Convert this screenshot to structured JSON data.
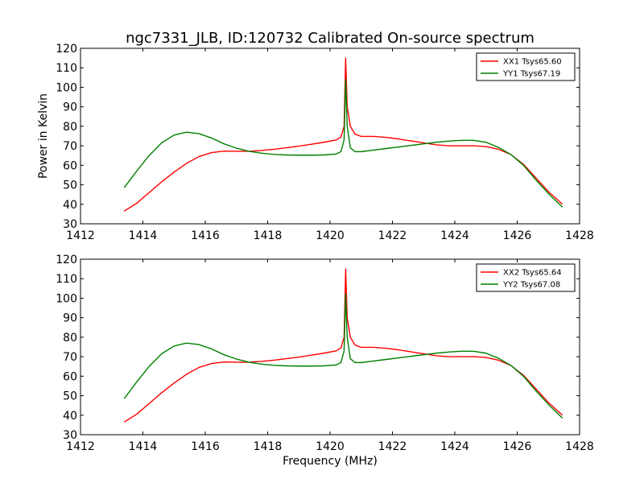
{
  "figure": {
    "title": "ngc7331_JLB, ID:120732 Calibrated On-source spectrum",
    "xlabel": "Frequency (MHz)"
  },
  "chart_data": [
    {
      "type": "line",
      "ylabel": "Power in Kelvin",
      "xlim": [
        1412,
        1428
      ],
      "ylim": [
        30,
        120
      ],
      "xticks": [
        1412,
        1414,
        1416,
        1418,
        1420,
        1422,
        1424,
        1426,
        1428
      ],
      "yticks": [
        30,
        40,
        50,
        60,
        70,
        80,
        90,
        100,
        110,
        120
      ],
      "grid": false,
      "legend": "top-right",
      "series": [
        {
          "name": "XX1 Tsys65.60",
          "color": "#ff0000",
          "x": [
            1413.4,
            1413.8,
            1414.2,
            1414.6,
            1415.0,
            1415.4,
            1415.8,
            1416.2,
            1416.6,
            1417.0,
            1417.4,
            1417.8,
            1418.2,
            1418.6,
            1419.0,
            1419.4,
            1419.8,
            1420.2,
            1420.35,
            1420.45,
            1420.5,
            1420.55,
            1420.65,
            1420.8,
            1421.0,
            1421.4,
            1421.8,
            1422.2,
            1422.6,
            1423.0,
            1423.4,
            1423.8,
            1424.2,
            1424.6,
            1425.0,
            1425.4,
            1425.8,
            1426.2,
            1426.6,
            1427.0,
            1427.45
          ],
          "y": [
            36.5,
            40.5,
            46,
            51.5,
            56.5,
            61,
            64.5,
            66.5,
            67.3,
            67.2,
            67.2,
            67.6,
            68.2,
            69,
            69.8,
            70.8,
            71.8,
            73,
            74.5,
            80,
            115,
            90,
            80,
            76,
            74.8,
            74.8,
            74.3,
            73.5,
            72.5,
            71.5,
            70.5,
            70,
            70,
            70,
            69.6,
            68.2,
            65.5,
            60.5,
            53.5,
            46.5,
            40
          ]
        },
        {
          "name": "YY1 Tsys67.19",
          "color": "#008000",
          "x": [
            1413.4,
            1413.8,
            1414.2,
            1414.6,
            1415.0,
            1415.4,
            1415.8,
            1416.2,
            1416.6,
            1417.0,
            1417.4,
            1417.8,
            1418.2,
            1418.6,
            1419.0,
            1419.4,
            1419.8,
            1420.2,
            1420.35,
            1420.45,
            1420.5,
            1420.55,
            1420.65,
            1420.8,
            1421.0,
            1421.4,
            1421.8,
            1422.2,
            1422.6,
            1423.0,
            1423.4,
            1423.8,
            1424.2,
            1424.6,
            1425.0,
            1425.4,
            1425.8,
            1426.2,
            1426.6,
            1427.0,
            1427.45
          ],
          "y": [
            48.5,
            57,
            65,
            71.5,
            75.5,
            77,
            76.2,
            74,
            71,
            68.8,
            67.2,
            66.2,
            65.6,
            65.3,
            65.2,
            65.2,
            65.3,
            65.8,
            67,
            73,
            104,
            80,
            69,
            67,
            67,
            67.8,
            68.6,
            69.4,
            70.2,
            71,
            71.8,
            72.4,
            72.8,
            72.8,
            71.8,
            69.2,
            65.5,
            60,
            52.5,
            45.5,
            38.5
          ]
        }
      ]
    },
    {
      "type": "line",
      "ylabel": "",
      "xlim": [
        1412,
        1428
      ],
      "ylim": [
        30,
        120
      ],
      "xticks": [
        1412,
        1414,
        1416,
        1418,
        1420,
        1422,
        1424,
        1426,
        1428
      ],
      "yticks": [
        30,
        40,
        50,
        60,
        70,
        80,
        90,
        100,
        110,
        120
      ],
      "grid": false,
      "legend": "top-right",
      "series": [
        {
          "name": "XX2 Tsys65.64",
          "color": "#ff0000",
          "x": [
            1413.4,
            1413.8,
            1414.2,
            1414.6,
            1415.0,
            1415.4,
            1415.8,
            1416.2,
            1416.6,
            1417.0,
            1417.4,
            1417.8,
            1418.2,
            1418.6,
            1419.0,
            1419.4,
            1419.8,
            1420.2,
            1420.35,
            1420.45,
            1420.5,
            1420.55,
            1420.65,
            1420.8,
            1421.0,
            1421.4,
            1421.8,
            1422.2,
            1422.6,
            1423.0,
            1423.4,
            1423.8,
            1424.2,
            1424.6,
            1425.0,
            1425.4,
            1425.8,
            1426.2,
            1426.6,
            1427.0,
            1427.45
          ],
          "y": [
            36.5,
            40.5,
            46,
            51.5,
            56.5,
            61,
            64.5,
            66.5,
            67.3,
            67.2,
            67.2,
            67.6,
            68.2,
            69,
            69.8,
            70.8,
            71.8,
            73,
            74.5,
            80,
            115,
            90,
            80,
            76,
            74.8,
            74.8,
            74.3,
            73.5,
            72.5,
            71.5,
            70.5,
            70,
            70,
            70,
            69.6,
            68.2,
            65.5,
            60.5,
            53.5,
            46.5,
            40
          ]
        },
        {
          "name": "YY2 Tsys67.08",
          "color": "#008000",
          "x": [
            1413.4,
            1413.8,
            1414.2,
            1414.6,
            1415.0,
            1415.4,
            1415.8,
            1416.2,
            1416.6,
            1417.0,
            1417.4,
            1417.8,
            1418.2,
            1418.6,
            1419.0,
            1419.4,
            1419.8,
            1420.2,
            1420.35,
            1420.45,
            1420.5,
            1420.55,
            1420.65,
            1420.8,
            1421.0,
            1421.4,
            1421.8,
            1422.2,
            1422.6,
            1423.0,
            1423.4,
            1423.8,
            1424.2,
            1424.6,
            1425.0,
            1425.4,
            1425.8,
            1426.2,
            1426.6,
            1427.0,
            1427.45
          ],
          "y": [
            48.5,
            57,
            65,
            71.5,
            75.5,
            77,
            76.2,
            74,
            71,
            68.8,
            67.2,
            66.2,
            65.6,
            65.3,
            65.2,
            65.2,
            65.3,
            65.8,
            67,
            73,
            102,
            80,
            69,
            67,
            67,
            67.8,
            68.6,
            69.4,
            70.2,
            71,
            71.8,
            72.4,
            72.8,
            72.8,
            71.8,
            69.2,
            65.5,
            60,
            52.5,
            45.5,
            38.5
          ]
        }
      ]
    }
  ]
}
